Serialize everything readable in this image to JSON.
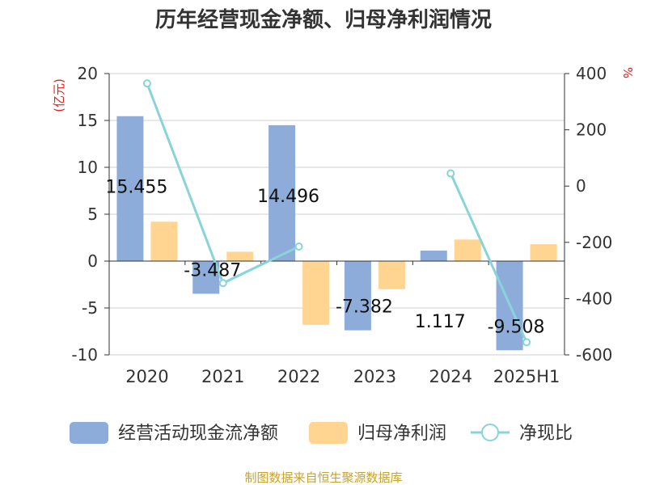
{
  "chart_data": {
    "type": "bar",
    "title": "历年经营现金净额、归母净利润情况",
    "categories": [
      "2020",
      "2021",
      "2022",
      "2023",
      "2024",
      "2025H1"
    ],
    "series": [
      {
        "name": "经营活动现金流净额",
        "type": "bar",
        "axis": "left",
        "color": "#8eacd9",
        "values": [
          15.455,
          -3.487,
          14.496,
          -7.382,
          1.117,
          -9.508
        ]
      },
      {
        "name": "归母净利润",
        "type": "bar",
        "axis": "left",
        "color": "#ffd591",
        "values": [
          4.2,
          1.0,
          -6.8,
          -3.0,
          2.3,
          1.8
        ]
      },
      {
        "name": "净现比",
        "type": "line",
        "axis": "right",
        "color": "#88d4d8",
        "values": [
          365,
          -345,
          -215,
          null,
          45,
          -555
        ]
      }
    ],
    "data_labels": [
      "15.455",
      "-3.487",
      "14.496",
      "-7.382",
      "1.117",
      "-9.508"
    ],
    "y_left": {
      "unit": "(亿元)",
      "ylim": [
        -10,
        20
      ],
      "ticks": [
        20,
        15,
        10,
        5,
        0,
        -5,
        -10
      ]
    },
    "y_right": {
      "unit": "%",
      "ylim": [
        -600,
        400
      ],
      "ticks": [
        400,
        200,
        0,
        -200,
        -400,
        -600
      ]
    },
    "grid": true,
    "legend_position": "bottom",
    "source": "制图数据来自恒生聚源数据库"
  }
}
